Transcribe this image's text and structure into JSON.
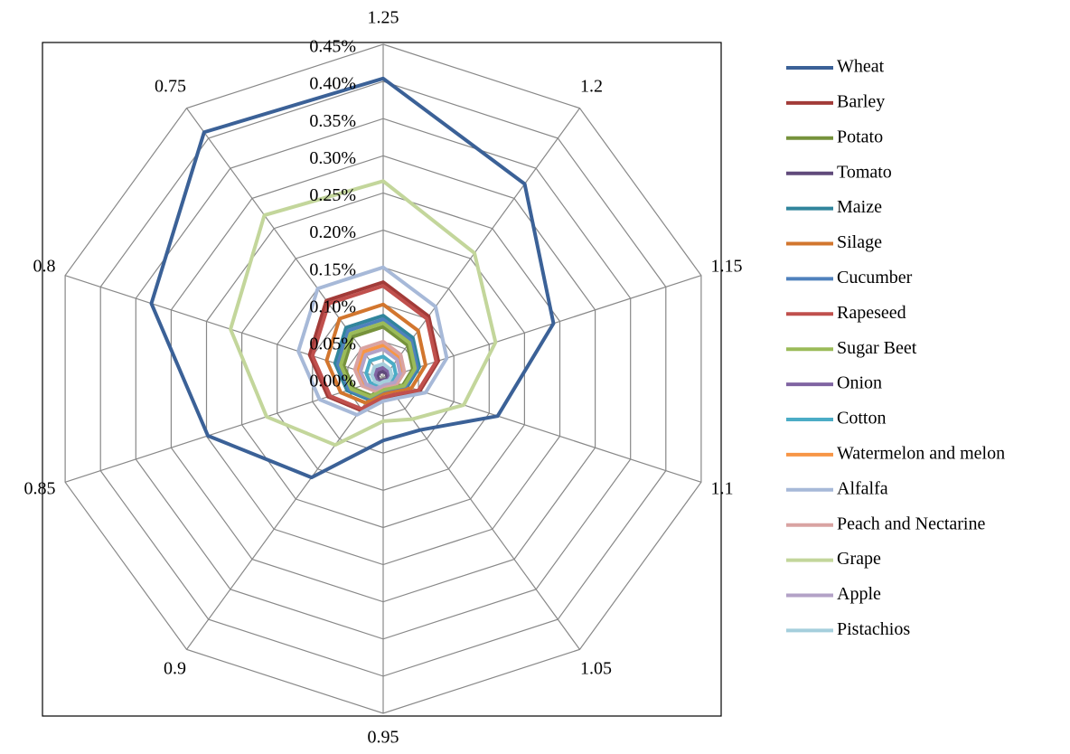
{
  "chart_data": {
    "type": "radar",
    "categories": [
      "1.25",
      "1.2",
      "1.15",
      "1.1",
      "1.05",
      "0.95",
      "0.9",
      "0.85",
      "0.8",
      "0.75"
    ],
    "ylim": [
      0,
      0.45
    ],
    "yticks": [
      {
        "value": 0,
        "label": "0.00%"
      },
      {
        "value": 0.05,
        "label": "0.05%"
      },
      {
        "value": 0.1,
        "label": "0.10%"
      },
      {
        "value": 0.15,
        "label": "0.15%"
      },
      {
        "value": 0.2,
        "label": "0.20%"
      },
      {
        "value": 0.25,
        "label": "0.25%"
      },
      {
        "value": 0.3,
        "label": "0.30%"
      },
      {
        "value": 0.35,
        "label": "0.35%"
      },
      {
        "value": 0.4,
        "label": "0.40%"
      },
      {
        "value": 0.45,
        "label": "0.45%"
      }
    ],
    "grid": true,
    "legend": "right",
    "series": [
      {
        "name": "Wheat",
        "color": "#3b6197",
        "values": [
          0.404,
          0.324,
          0.241,
          0.162,
          0.085,
          0.083,
          0.164,
          0.248,
          0.328,
          0.41
        ]
      },
      {
        "name": "Barley",
        "color": "#a23b38",
        "values": [
          0.13,
          0.104,
          0.078,
          0.052,
          0.027,
          0.026,
          0.052,
          0.078,
          0.104,
          0.13
        ]
      },
      {
        "name": "Potato",
        "color": "#76923c",
        "values": [
          0.07,
          0.056,
          0.042,
          0.028,
          0.015,
          0.014,
          0.028,
          0.042,
          0.056,
          0.07
        ]
      },
      {
        "name": "Tomato",
        "color": "#604a7b",
        "values": [
          0.01,
          0.008,
          0.006,
          0.004,
          0.002,
          0.002,
          0.004,
          0.006,
          0.008,
          0.01
        ]
      },
      {
        "name": "Maize",
        "color": "#31859c",
        "values": [
          0.085,
          0.068,
          0.051,
          0.034,
          0.018,
          0.017,
          0.034,
          0.051,
          0.068,
          0.085
        ]
      },
      {
        "name": "Silage",
        "color": "#d2762e",
        "values": [
          0.1,
          0.08,
          0.06,
          0.04,
          0.021,
          0.02,
          0.04,
          0.06,
          0.08,
          0.1
        ]
      },
      {
        "name": "Cucumber",
        "color": "#4f81bd",
        "values": [
          0.08,
          0.064,
          0.048,
          0.032,
          0.017,
          0.016,
          0.032,
          0.048,
          0.064,
          0.08
        ]
      },
      {
        "name": "Rapeseed",
        "color": "#c0504d",
        "values": [
          0.125,
          0.1,
          0.075,
          0.05,
          0.026,
          0.025,
          0.05,
          0.075,
          0.1,
          0.125
        ]
      },
      {
        "name": "Sugar Beet",
        "color": "#9bbb59",
        "values": [
          0.075,
          0.06,
          0.045,
          0.03,
          0.016,
          0.015,
          0.03,
          0.045,
          0.06,
          0.075
        ]
      },
      {
        "name": "Onion",
        "color": "#8064a2",
        "values": [
          0.015,
          0.012,
          0.009,
          0.006,
          0.003,
          0.003,
          0.006,
          0.009,
          0.012,
          0.015
        ]
      },
      {
        "name": "Cotton",
        "color": "#4bacc6",
        "values": [
          0.03,
          0.024,
          0.018,
          0.012,
          0.006,
          0.006,
          0.012,
          0.018,
          0.024,
          0.03
        ]
      },
      {
        "name": "Watermelon and melon",
        "color": "#f79646",
        "values": [
          0.045,
          0.036,
          0.027,
          0.018,
          0.009,
          0.009,
          0.018,
          0.027,
          0.036,
          0.045
        ]
      },
      {
        "name": "Alfalfa",
        "color": "#a7b9d8",
        "values": [
          0.15,
          0.12,
          0.09,
          0.06,
          0.032,
          0.03,
          0.06,
          0.09,
          0.12,
          0.15
        ]
      },
      {
        "name": "Peach and Nectarine",
        "color": "#d9a3a2",
        "values": [
          0.05,
          0.04,
          0.03,
          0.02,
          0.011,
          0.01,
          0.02,
          0.03,
          0.04,
          0.05
        ]
      },
      {
        "name": "Grape",
        "color": "#c3d69b",
        "values": [
          0.266,
          0.209,
          0.159,
          0.114,
          0.067,
          0.057,
          0.11,
          0.165,
          0.216,
          0.272
        ]
      },
      {
        "name": "Apple",
        "color": "#b3a2c7",
        "values": [
          0.04,
          0.032,
          0.024,
          0.016,
          0.008,
          0.008,
          0.016,
          0.024,
          0.032,
          0.04
        ]
      },
      {
        "name": "Pistachios",
        "color": "#a5cfdc",
        "values": [
          0.02,
          0.016,
          0.012,
          0.008,
          0.004,
          0.004,
          0.008,
          0.012,
          0.016,
          0.02
        ]
      }
    ]
  }
}
